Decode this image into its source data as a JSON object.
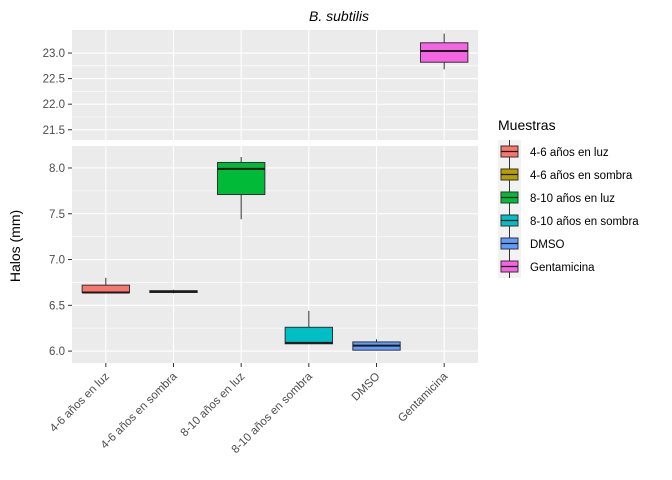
{
  "chart_data": {
    "type": "box",
    "title": "B. subtilis",
    "xlabel": "",
    "ylabel": "Halos (mm)",
    "categories": [
      "4-6 años en luz",
      "4-6 años en sombra",
      "8-10 años en luz",
      "8-10 años en sombra",
      "DMSO",
      "Gentamicina"
    ],
    "series": [
      {
        "name": "4-6 años en luz",
        "color": "#F8766D",
        "min": 6.63,
        "q1": 6.64,
        "median": 6.64,
        "q3": 6.72,
        "max": 6.8
      },
      {
        "name": "4-6 años en sombra",
        "color": "#B79F00",
        "min": 6.63,
        "q1": 6.64,
        "median": 6.65,
        "q3": 6.66,
        "max": 6.67
      },
      {
        "name": "8-10 años en luz",
        "color": "#00BA38",
        "min": 7.44,
        "q1": 7.71,
        "median": 7.99,
        "q3": 8.06,
        "max": 8.12
      },
      {
        "name": "8-10 años en sombra",
        "color": "#00BFC4",
        "min": 6.08,
        "q1": 6.08,
        "median": 6.09,
        "q3": 6.26,
        "max": 6.44
      },
      {
        "name": "DMSO",
        "color": "#619CFF",
        "min": 6.01,
        "q1": 6.01,
        "median": 6.06,
        "q3": 6.1,
        "max": 6.13
      },
      {
        "name": "Gentamicina",
        "color": "#F564E3",
        "min": 22.68,
        "q1": 22.82,
        "median": 23.04,
        "q3": 23.2,
        "max": 23.38
      }
    ],
    "panels": [
      {
        "ylim": [
          21.3,
          23.45
        ],
        "ticks": [
          21.5,
          22.0,
          22.5,
          23.0
        ],
        "tick_labels": [
          "21.5",
          "22.0",
          "22.5",
          "23.0"
        ]
      },
      {
        "ylim": [
          5.87,
          8.24
        ],
        "ticks": [
          6.0,
          6.5,
          7.0,
          7.5,
          8.0
        ],
        "tick_labels": [
          "6.0",
          "6.5",
          "7.0",
          "7.5",
          "8.0"
        ]
      }
    ],
    "y_axis_break": true,
    "grid": true,
    "legend": {
      "title": "Muestras",
      "position": "right"
    }
  }
}
